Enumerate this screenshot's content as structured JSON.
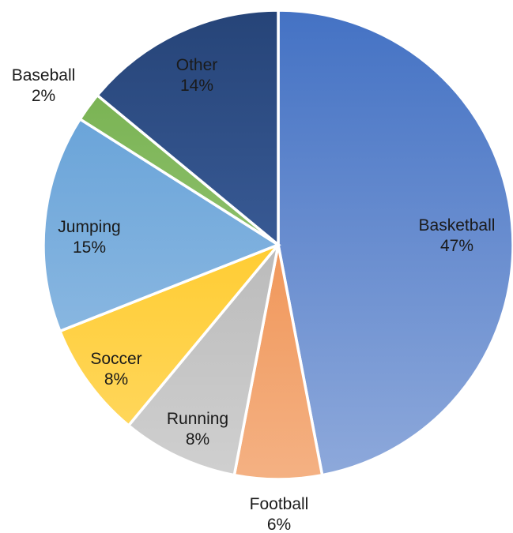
{
  "chart_data": {
    "type": "pie",
    "title": "",
    "start_angle_deg": 0,
    "direction": "clockwise",
    "legend": "none",
    "slices": [
      {
        "label": "Basketball",
        "value": 47,
        "value_label": "47%",
        "color_top": "#4472C4",
        "color_bottom": "#8EA9DB",
        "label_position": "inside"
      },
      {
        "label": "Football",
        "value": 6,
        "value_label": "6%",
        "color_top": "#ED7D31",
        "color_bottom": "#F4B183",
        "label_position": "outside"
      },
      {
        "label": "Running",
        "value": 8,
        "value_label": "8%",
        "color_top": "#A5A5A5",
        "color_bottom": "#D0D0D0",
        "label_position": "inside"
      },
      {
        "label": "Soccer",
        "value": 8,
        "value_label": "8%",
        "color_top": "#FFC000",
        "color_bottom": "#FFD966",
        "label_position": "inside"
      },
      {
        "label": "Jumping",
        "value": 15,
        "value_label": "15%",
        "color_top": "#5B9BD5",
        "color_bottom": "#9DC3E6",
        "label_position": "inside"
      },
      {
        "label": "Baseball",
        "value": 2,
        "value_label": "2%",
        "color_top": "#70AD47",
        "color_bottom": "#A9D18E",
        "label_position": "outside"
      },
      {
        "label": "Other",
        "value": 14,
        "value_label": "14%",
        "color_top": "#264478",
        "color_bottom": "#4A6FB0",
        "label_position": "inside"
      }
    ]
  }
}
